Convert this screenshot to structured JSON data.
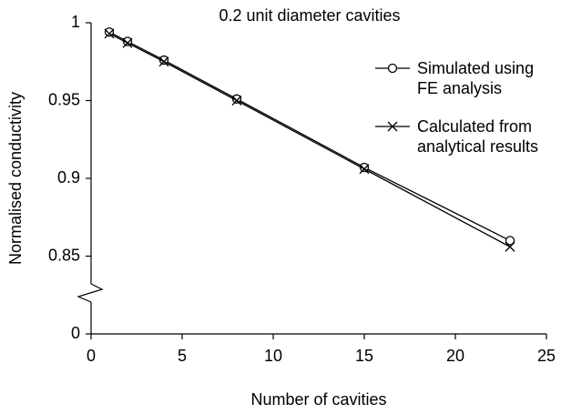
{
  "chart_data": {
    "type": "line",
    "title": "0.2 unit diameter cavities",
    "xlabel": "Number of cavities",
    "ylabel": "Normalised conductivity",
    "x": [
      1,
      2,
      4,
      8,
      15,
      23
    ],
    "series": [
      {
        "name": "Simulated using FE analysis",
        "color": "#000000",
        "marker": "circle",
        "values": [
          0.994,
          0.988,
          0.976,
          0.951,
          0.907,
          0.86
        ]
      },
      {
        "name": "Calculated from analytical results",
        "color": "#000000",
        "marker": "x",
        "values": [
          0.993,
          0.987,
          0.975,
          0.95,
          0.906,
          0.856
        ]
      }
    ],
    "xlim": [
      0,
      25
    ],
    "xticks": [
      0,
      5,
      10,
      15,
      20,
      25
    ],
    "ylim": [
      0,
      1
    ],
    "axis_break": [
      0,
      0.8
    ],
    "yticks": [
      0,
      0.85,
      0.9,
      0.95,
      1
    ],
    "grid": false,
    "legend": "upper right"
  }
}
